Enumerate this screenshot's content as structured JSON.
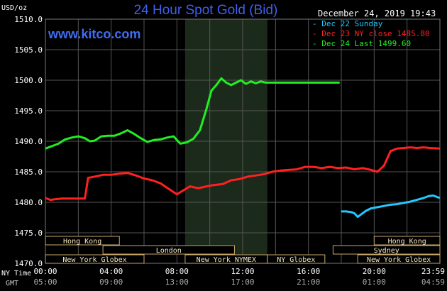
{
  "header": {
    "y_unit": "USD/oz",
    "title": "24 Hour Spot Gold (Bid)",
    "site": "www.kitco.com",
    "timestamp": "December 24, 2019 19:43"
  },
  "legend": [
    {
      "label": "- Dec 22 Sunday",
      "color": "#22c8ff"
    },
    {
      "label": "- Dec 23 NY close 1485.80",
      "color": "#ff2020"
    },
    {
      "label": "- Dec 24 Last 1499.60",
      "color": "#22ee22"
    }
  ],
  "axis_labels": {
    "ny_time": "NY Time",
    "gmt": "GMT"
  },
  "colors": {
    "background": "#000000",
    "plot_bg": "#000000",
    "grid": "#555555",
    "shaded_region": "#1c2a1c",
    "axis_text": "#ffffff",
    "title": "#3f5ff0"
  },
  "chart_data": {
    "type": "line",
    "title": "24 Hour Spot Gold (Bid)",
    "ylabel": "USD/oz",
    "ylim": [
      1470,
      1510
    ],
    "yticks": [
      "1470.0",
      "1475.0",
      "1480.0",
      "1485.0",
      "1490.0",
      "1495.0",
      "1500.0",
      "1505.0",
      "1510.0"
    ],
    "x_range_hours": [
      0,
      24
    ],
    "xticks_ny": [
      "00:00",
      "04:00",
      "08:00",
      "12:00",
      "16:00",
      "20:00",
      "23:59"
    ],
    "xticks_gmt": [
      "05:00",
      "09:00",
      "13:00",
      "17:00",
      "21:00",
      "01:00",
      "04:59"
    ],
    "shaded_hours": [
      8.5,
      13.5
    ],
    "grid": true,
    "legend_position": "top-right",
    "markets": [
      {
        "name": "Hong Kong",
        "start": 0,
        "end": 4.5,
        "row": 0
      },
      {
        "name": "Hong Kong",
        "start": 20,
        "end": 24,
        "row": 0
      },
      {
        "name": "London",
        "start": 3.5,
        "end": 11.5,
        "row": 1
      },
      {
        "name": "Sydney",
        "start": 17.5,
        "end": 24,
        "row": 1
      },
      {
        "name": "New York Globex",
        "start": 0,
        "end": 6,
        "row": 2
      },
      {
        "name": "New York NYMEX",
        "start": 8.5,
        "end": 13.5,
        "row": 2
      },
      {
        "name": "NY Globex",
        "start": 13.5,
        "end": 17,
        "row": 2
      },
      {
        "name": "New York Globex",
        "start": 19,
        "end": 24,
        "row": 2
      }
    ],
    "series": [
      {
        "name": "Dec 22 Sunday",
        "color": "#22c8ff",
        "x": [
          18,
          18.3,
          18.6,
          18.8,
          19.0,
          19.2,
          19.5,
          19.8,
          20.2,
          20.6,
          21.0,
          21.4,
          21.8,
          22.2,
          22.6,
          23.0,
          23.3,
          23.6,
          23.99
        ],
        "y": [
          1478.5,
          1478.5,
          1478.4,
          1478.2,
          1477.6,
          1478.0,
          1478.6,
          1479.0,
          1479.2,
          1479.4,
          1479.6,
          1479.7,
          1479.9,
          1480.1,
          1480.4,
          1480.7,
          1481.0,
          1481.1,
          1480.7
        ]
      },
      {
        "name": "Dec 23 NY close 1485.80",
        "color": "#ff2020",
        "x": [
          0,
          0.3,
          0.6,
          1.0,
          1.5,
          2.0,
          2.4,
          2.6,
          3.0,
          3.5,
          4.0,
          4.5,
          5.0,
          5.5,
          6.0,
          6.5,
          7.0,
          7.5,
          8.0,
          8.3,
          8.8,
          9.3,
          9.8,
          10.2,
          10.8,
          11.3,
          11.8,
          12.3,
          12.8,
          13.3,
          13.8,
          14.3,
          14.8,
          15.3,
          15.8,
          16.3,
          16.8,
          17.3,
          17.8,
          18.3,
          18.8,
          19.3,
          19.8,
          20.2,
          20.6,
          21.0,
          21.4,
          21.8,
          22.2,
          22.6,
          23.0,
          23.4,
          23.99
        ],
        "y": [
          1480.7,
          1480.4,
          1480.5,
          1480.6,
          1480.6,
          1480.6,
          1480.6,
          1484.0,
          1484.2,
          1484.5,
          1484.5,
          1484.7,
          1484.8,
          1484.4,
          1483.9,
          1483.6,
          1483.1,
          1482.2,
          1481.3,
          1481.8,
          1482.6,
          1482.3,
          1482.6,
          1482.8,
          1483.0,
          1483.6,
          1483.8,
          1484.2,
          1484.4,
          1484.6,
          1485.0,
          1485.2,
          1485.3,
          1485.4,
          1485.8,
          1485.8,
          1485.6,
          1485.8,
          1485.6,
          1485.7,
          1485.4,
          1485.6,
          1485.3,
          1485.0,
          1486.0,
          1488.4,
          1488.8,
          1488.9,
          1489.0,
          1488.9,
          1489.0,
          1488.9,
          1488.8
        ]
      },
      {
        "name": "Dec 24 Last 1499.60",
        "color": "#22ee22",
        "x": [
          0,
          0.4,
          0.8,
          1.2,
          1.6,
          2.0,
          2.4,
          2.7,
          3.0,
          3.4,
          3.8,
          4.2,
          4.6,
          5.0,
          5.4,
          5.8,
          6.2,
          6.6,
          7.0,
          7.4,
          7.8,
          8.2,
          8.6,
          9.0,
          9.4,
          9.8,
          10.1,
          10.4,
          10.7,
          11.0,
          11.3,
          11.6,
          11.9,
          12.2,
          12.5,
          12.8,
          13.1,
          13.4,
          13.7,
          14.0,
          15.0,
          16.0,
          17.0,
          17.9
        ],
        "y": [
          1488.8,
          1489.2,
          1489.6,
          1490.3,
          1490.6,
          1490.8,
          1490.5,
          1490.0,
          1490.1,
          1490.8,
          1490.9,
          1490.9,
          1491.3,
          1491.8,
          1491.2,
          1490.5,
          1489.9,
          1490.2,
          1490.3,
          1490.6,
          1490.8,
          1489.6,
          1489.8,
          1490.4,
          1491.8,
          1495.3,
          1498.3,
          1499.2,
          1500.3,
          1499.6,
          1499.2,
          1499.6,
          1500.0,
          1499.4,
          1499.8,
          1499.5,
          1499.8,
          1499.6,
          1499.6,
          1499.6,
          1499.6,
          1499.6,
          1499.6,
          1499.6
        ]
      }
    ]
  }
}
